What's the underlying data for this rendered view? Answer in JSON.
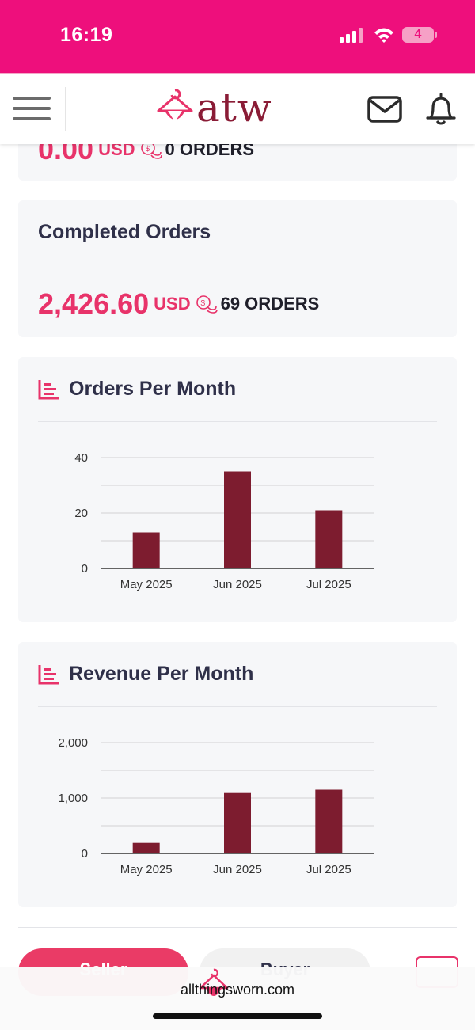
{
  "status_bar": {
    "time": "16:19",
    "battery": "4"
  },
  "header": {
    "logo_text": "atw"
  },
  "pending_card": {
    "amount": "0.00",
    "currency": "USD",
    "orders": "0 ORDERS"
  },
  "completed_card": {
    "title": "Completed Orders",
    "amount": "2,426.60",
    "currency": "USD",
    "orders": "69 ORDERS"
  },
  "orders_chart": {
    "title": "Orders Per Month",
    "chart_data": {
      "type": "bar",
      "categories": [
        "May 2025",
        "Jun 2025",
        "Jul 2025"
      ],
      "values": [
        13,
        35,
        21
      ],
      "ylim": [
        0,
        40
      ],
      "yticks": [
        0,
        20,
        40
      ],
      "ytick_labels": [
        "0",
        "20",
        "40"
      ],
      "grid": true,
      "color": "#7d1c2f"
    }
  },
  "revenue_chart": {
    "title": "Revenue Per Month",
    "chart_data": {
      "type": "bar",
      "categories": [
        "May 2025",
        "Jun 2025",
        "Jul 2025"
      ],
      "values": [
        190,
        1090,
        1150
      ],
      "ylim": [
        0,
        2000
      ],
      "yticks": [
        0,
        1000,
        2000
      ],
      "ytick_labels": [
        "0",
        "1,000",
        "2,000"
      ],
      "grid": true,
      "color": "#7d1c2f"
    }
  },
  "tabs": {
    "seller": "Seller",
    "buyer": "Buyer"
  },
  "browser": {
    "url": "allthingsworn.com"
  },
  "colors": {
    "brand_pink": "#ee0f7c",
    "accent": "#e8336a",
    "bar": "#7d1c2f"
  }
}
